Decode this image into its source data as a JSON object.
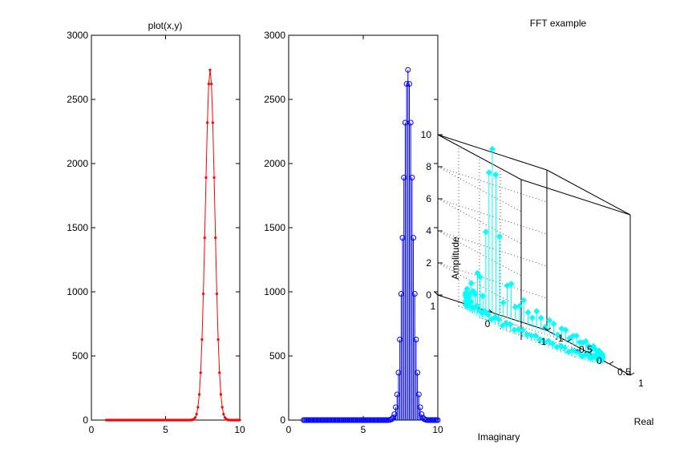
{
  "chart_data": [
    {
      "type": "line",
      "title": "plot(x,y)",
      "xlabel": "",
      "ylabel": "",
      "xlim": [
        0,
        10
      ],
      "ylim": [
        0,
        3000
      ],
      "xticks": [
        "0",
        "5",
        "10"
      ],
      "yticks": [
        "0",
        "500",
        "1000",
        "1500",
        "2000",
        "2500",
        "3000"
      ],
      "marker": "dot",
      "color": "#ff0000",
      "x_range": [
        1,
        10
      ],
      "points": 100,
      "peak": {
        "x": 8.0,
        "y": 2730
      },
      "width": 0.45,
      "grid": false
    },
    {
      "type": "stem",
      "title": "",
      "xlabel": "",
      "ylabel": "",
      "xlim": [
        0,
        10
      ],
      "ylim": [
        0,
        3000
      ],
      "xticks": [
        "0",
        "5",
        "10"
      ],
      "yticks": [
        "0",
        "500",
        "1000",
        "1500",
        "2000",
        "2500",
        "3000"
      ],
      "marker": "circle",
      "color": "#0000ff",
      "x_range": [
        1,
        10
      ],
      "points": 100,
      "peak": {
        "x": 8.0,
        "y": 2730
      },
      "width": 0.45,
      "grid": false
    },
    {
      "type": "stem3",
      "title": "FFT example",
      "xlabel": "Imaginary",
      "ylabel": "Real",
      "zlabel": "Amplitude",
      "zlim": [
        0,
        10
      ],
      "zticks": [
        "0",
        "2",
        "4",
        "6",
        "8",
        "10"
      ],
      "real_ticks": [
        "-1",
        "-0.5",
        "0",
        "0.5",
        "1"
      ],
      "imag_ticks": [
        "1",
        "0",
        "-1"
      ],
      "marker": "diamond-filled",
      "color": "#00ffff",
      "samples": 100,
      "amplitude": "abs(sinc(t))*10 style spectrum on unit circle",
      "peak_amplitude": 10,
      "grid": true
    }
  ],
  "colors": {
    "background": "#ffffff",
    "axes": "#000000",
    "grid": "#555555"
  }
}
